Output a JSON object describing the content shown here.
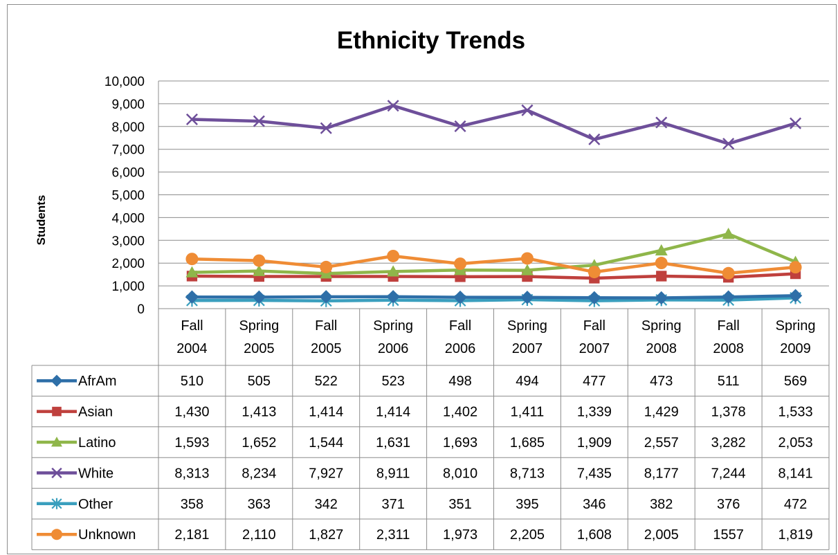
{
  "chart_data": {
    "type": "line",
    "title": "Ethnicity Trends",
    "ylabel": "Students",
    "xlabel": "",
    "ylim": [
      0,
      10000
    ],
    "y_ticks": [
      "0",
      "1,000",
      "2,000",
      "3,000",
      "4,000",
      "5,000",
      "6,000",
      "7,000",
      "8,000",
      "9,000",
      "10,000"
    ],
    "y_tick_values": [
      0,
      1000,
      2000,
      3000,
      4000,
      5000,
      6000,
      7000,
      8000,
      9000,
      10000
    ],
    "grid": true,
    "legend": "data-table",
    "categories": [
      [
        "Fall",
        "2004"
      ],
      [
        "Spring",
        "2005"
      ],
      [
        "Fall",
        "2005"
      ],
      [
        "Spring",
        "2006"
      ],
      [
        "Fall",
        "2006"
      ],
      [
        "Spring",
        "2007"
      ],
      [
        "Fall",
        "2007"
      ],
      [
        "Spring",
        "2008"
      ],
      [
        "Fall",
        "2008"
      ],
      [
        "Spring",
        "2009"
      ]
    ],
    "series": [
      {
        "name": "AfrAm",
        "color": "#2e6fa8",
        "marker": "diamond",
        "values": [
          510,
          505,
          522,
          523,
          498,
          494,
          477,
          473,
          511,
          569
        ],
        "labels": [
          "510",
          "505",
          "522",
          "523",
          "498",
          "494",
          "477",
          "473",
          "511",
          "569"
        ]
      },
      {
        "name": "Asian",
        "color": "#bf403d",
        "marker": "square",
        "values": [
          1430,
          1413,
          1414,
          1414,
          1402,
          1411,
          1339,
          1429,
          1378,
          1533
        ],
        "labels": [
          "1,430",
          "1,413",
          "1,414",
          "1,414",
          "1,402",
          "1,411",
          "1,339",
          "1,429",
          "1,378",
          "1,533"
        ]
      },
      {
        "name": "Latino",
        "color": "#8fb64a",
        "marker": "triangle",
        "values": [
          1593,
          1652,
          1544,
          1631,
          1693,
          1685,
          1909,
          2557,
          3282,
          2053
        ],
        "labels": [
          "1,593",
          "1,652",
          "1,544",
          "1,631",
          "1,693",
          "1,685",
          "1,909",
          "2,557",
          "3,282",
          "2,053"
        ]
      },
      {
        "name": "White",
        "color": "#6e4f9a",
        "marker": "x",
        "values": [
          8313,
          8234,
          7927,
          8911,
          8010,
          8713,
          7435,
          8177,
          7244,
          8141
        ],
        "labels": [
          "8,313",
          "8,234",
          "7,927",
          "8,911",
          "8,010",
          "8,713",
          "7,435",
          "8,177",
          "7,244",
          "8,141"
        ]
      },
      {
        "name": "Other",
        "color": "#3a9fbe",
        "marker": "star",
        "values": [
          358,
          363,
          342,
          371,
          351,
          395,
          346,
          382,
          376,
          472
        ],
        "labels": [
          "358",
          "363",
          "342",
          "371",
          "351",
          "395",
          "346",
          "382",
          "376",
          "472"
        ]
      },
      {
        "name": "Unknown",
        "color": "#ef8c35",
        "marker": "circle",
        "values": [
          2181,
          2110,
          1827,
          2311,
          1973,
          2205,
          1608,
          2005,
          1557,
          1819
        ],
        "labels": [
          "2,181",
          "2,110",
          "1,827",
          "2,311",
          "1,973",
          "2,205",
          "1,608",
          "2,005",
          "1557",
          "1,819"
        ]
      }
    ]
  }
}
